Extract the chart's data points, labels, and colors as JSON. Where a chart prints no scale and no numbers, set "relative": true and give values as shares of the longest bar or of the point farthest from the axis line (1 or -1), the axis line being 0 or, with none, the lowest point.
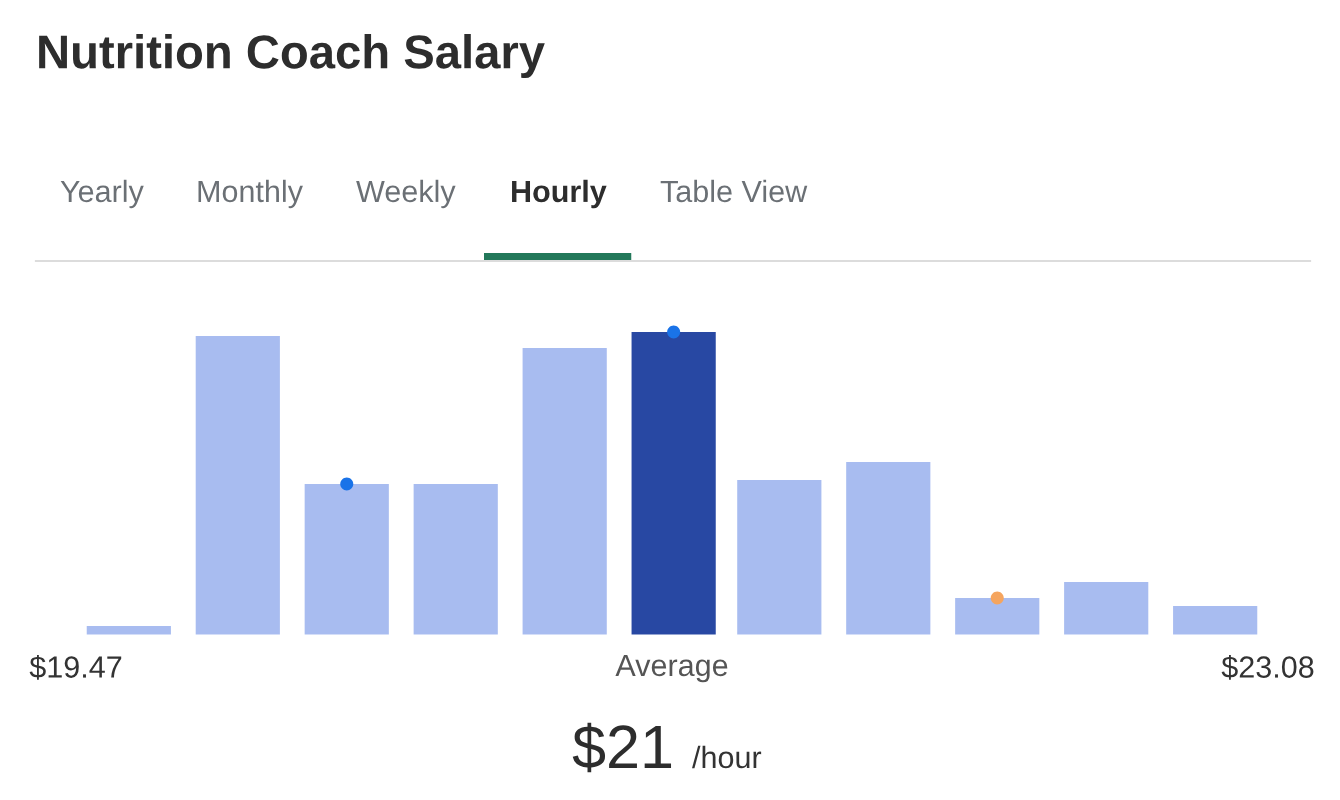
{
  "chart_data": {
    "type": "bar",
    "title": "Nutrition Coach Salary",
    "relative": true,
    "x": [
      19.63,
      19.96,
      20.29,
      20.62,
      20.95,
      21.28,
      21.6,
      21.93,
      22.26,
      22.59,
      22.92
    ],
    "xlim": [
      19.47,
      23.08
    ],
    "xticks": [
      {
        "value": 19.47,
        "label": "$19.47"
      },
      {
        "value": 23.08,
        "label": "$23.08"
      }
    ],
    "series": [
      {
        "colors": [
          "#a8bcf0",
          "#a8bcf0",
          "#a8bcf0",
          "#a8bcf0",
          "#a8bcf0",
          "#2848a3",
          "#a8bcf0",
          "#a8bcf0",
          "#a8bcf0",
          "#a8bcf0",
          "#a8bcf0"
        ],
        "values": [
          0.033,
          0.987,
          0.5,
          0.5,
          0.947,
          1,
          0.513,
          0.572,
          0.125,
          0.178,
          0.099
        ]
      },
      {
        "type": "scatter",
        "color": "#1a73e8",
        "x": [
          20.29,
          21.28
        ],
        "values": [
          0.5,
          1
        ]
      },
      {
        "type": "scatter",
        "color": "#f5a55f",
        "x": [
          22.26
        ],
        "values": [
          0.125
        ]
      }
    ],
    "marker": "circle",
    "annotations": [
      "Yearly",
      "Monthly",
      "Weekly",
      "Hourly",
      "Table View",
      "Average",
      "$21",
      "/hour"
    ]
  }
}
